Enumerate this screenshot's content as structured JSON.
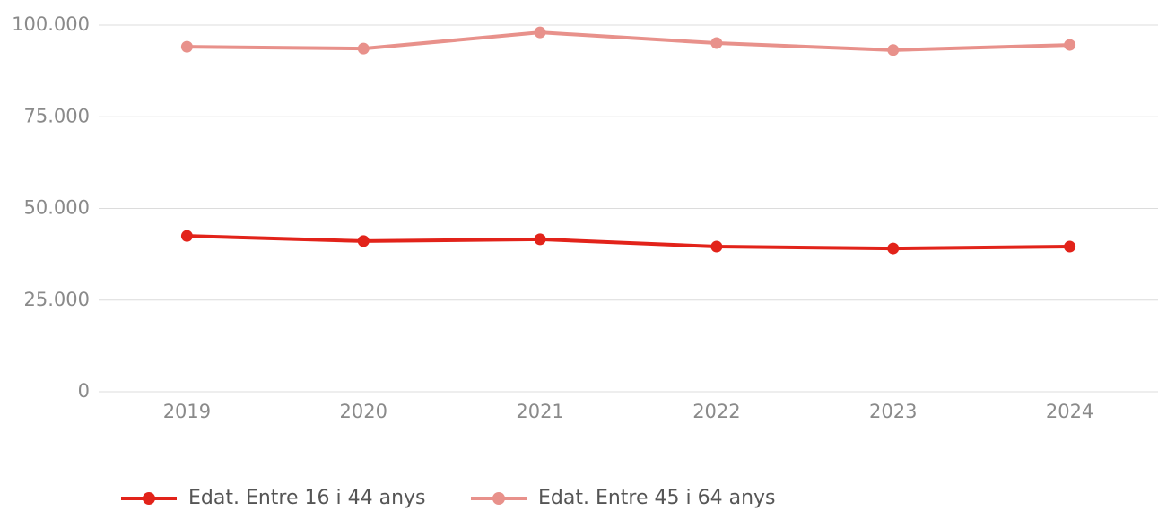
{
  "chart_data": {
    "type": "line",
    "categories": [
      "2019",
      "2020",
      "2021",
      "2022",
      "2023",
      "2024"
    ],
    "series": [
      {
        "name": "Edat. Entre 16 i 44 anys",
        "color": "#e2231a",
        "values": [
          42500,
          41100,
          41600,
          39600,
          39100,
          39600
        ]
      },
      {
        "name": "Edat. Entre 45 i 64 anys",
        "color": "#e8918b",
        "values": [
          94100,
          93600,
          98000,
          95100,
          93200,
          94600
        ]
      }
    ],
    "ylim": [
      0,
      100000
    ],
    "yticks": [
      0,
      {
        "value": 25000,
        "label": "25.000"
      },
      {
        "value": 50000,
        "label": "50.000"
      },
      {
        "value": 75000,
        "label": "75.000"
      },
      {
        "value": 100000,
        "label": "100.000"
      }
    ],
    "grid": true
  }
}
